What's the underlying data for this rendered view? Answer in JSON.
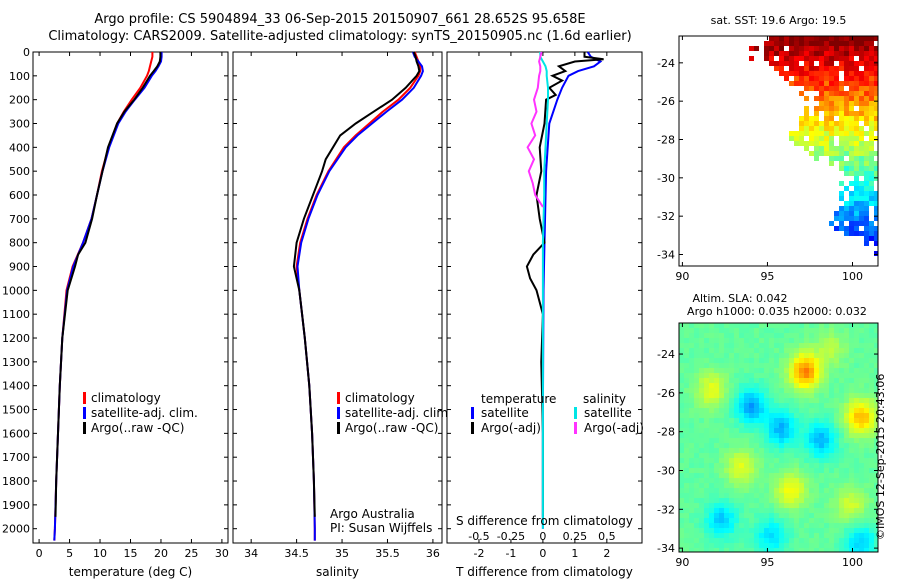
{
  "header": {
    "line1": "Argo profile: CS 5904894_33 06-Sep-2015 20150907_661 28.652S 95.658E",
    "line2": "Climatology: CARS2009. Satellite-adjusted climatology: synTS_20150905.nc (1.6d earlier)"
  },
  "credit": "©IMOS 12-Sep-2015 20:43:06",
  "colors": {
    "climatology": "#ff0000",
    "satellite": "#0000ff",
    "argo": "#000000",
    "satellite_s": "#00e5e5",
    "argo_s": "#ff33ff"
  },
  "chart_data": [
    {
      "id": "temperature-profile",
      "type": "line",
      "xlabel": "temperature (deg C)",
      "xlim": [
        -1,
        31
      ],
      "ylim": [
        0,
        2060
      ],
      "y_reversed": true,
      "xticks": [
        0,
        5,
        10,
        15,
        20,
        25,
        30
      ],
      "yticks": [
        0,
        100,
        200,
        300,
        400,
        500,
        600,
        700,
        800,
        900,
        1000,
        1100,
        1200,
        1300,
        1400,
        1500,
        1600,
        1700,
        1800,
        1900,
        2000
      ],
      "legend": [
        "climatology",
        "satellite-adj. clim.",
        "Argo(..raw -QC)"
      ],
      "series": [
        {
          "name": "climatology",
          "color": "#ff0000",
          "depth": [
            0,
            20,
            40,
            60,
            80,
            100,
            150,
            200,
            250,
            300,
            400,
            500,
            600,
            700,
            800,
            900,
            1000,
            1200,
            1400,
            1600,
            1800,
            2000,
            2050
          ],
          "values": [
            18.6,
            18.6,
            18.4,
            18.2,
            18.0,
            17.7,
            16.6,
            15.2,
            13.9,
            12.8,
            11.4,
            10.3,
            9.5,
            8.6,
            7.2,
            5.5,
            4.5,
            3.8,
            3.4,
            3.1,
            2.8,
            2.6,
            2.5
          ]
        },
        {
          "name": "satellite-adj. clim.",
          "color": "#0000ff",
          "depth": [
            0,
            20,
            40,
            60,
            80,
            100,
            150,
            200,
            250,
            300,
            400,
            500,
            600,
            700,
            800,
            900,
            1000,
            1200,
            1400,
            1600,
            1800,
            2000,
            2050
          ],
          "values": [
            20.1,
            20.1,
            20.0,
            19.6,
            19.1,
            18.5,
            17.3,
            15.7,
            14.2,
            13.0,
            11.5,
            10.4,
            9.5,
            8.6,
            7.2,
            5.6,
            4.6,
            3.8,
            3.4,
            3.1,
            2.8,
            2.6,
            2.5
          ]
        },
        {
          "name": "Argo(..raw -QC)",
          "color": "#000000",
          "depth": [
            0,
            20,
            40,
            60,
            80,
            100,
            150,
            200,
            250,
            300,
            400,
            500,
            600,
            700,
            800,
            850,
            900,
            1000,
            1200,
            1400,
            1600,
            1800,
            1950
          ],
          "values": [
            19.9,
            19.9,
            19.8,
            19.4,
            18.8,
            18.2,
            17.0,
            15.6,
            14.0,
            12.8,
            11.3,
            10.4,
            9.5,
            8.7,
            7.6,
            6.4,
            5.9,
            4.7,
            3.8,
            3.4,
            3.1,
            2.8,
            2.7
          ]
        }
      ]
    },
    {
      "id": "salinity-profile",
      "type": "line",
      "xlabel": "salinity",
      "xlim": [
        33.8,
        36.1
      ],
      "ylim": [
        0,
        2060
      ],
      "y_reversed": true,
      "xticks": [
        34,
        34.5,
        35,
        35.5,
        36
      ],
      "xticklabels": [
        "34",
        "34.5",
        "35",
        "35.5",
        "36"
      ],
      "legend": [
        "climatology",
        "satellite-adj. clim.",
        "Argo(..raw -QC)"
      ],
      "annotation": [
        "Argo Australia",
        "PI: Susan Wijffels"
      ],
      "series": [
        {
          "name": "climatology",
          "color": "#ff0000",
          "depth": [
            0,
            20,
            40,
            60,
            80,
            100,
            150,
            200,
            250,
            300,
            350,
            400,
            500,
            600,
            700,
            800,
            900,
            1000,
            1200,
            1400,
            1600,
            1800,
            2000,
            2050
          ],
          "values": [
            35.8,
            35.82,
            35.84,
            35.86,
            35.86,
            35.84,
            35.75,
            35.62,
            35.45,
            35.3,
            35.15,
            35.02,
            34.85,
            34.72,
            34.62,
            34.54,
            34.5,
            34.53,
            34.59,
            34.64,
            34.67,
            34.69,
            34.7,
            34.7
          ]
        },
        {
          "name": "satellite-adj. clim.",
          "color": "#0000ff",
          "depth": [
            0,
            20,
            40,
            60,
            80,
            100,
            150,
            200,
            250,
            300,
            350,
            400,
            500,
            600,
            700,
            800,
            900,
            1000,
            1200,
            1400,
            1600,
            1800,
            2000,
            2050
          ],
          "values": [
            35.78,
            35.8,
            35.84,
            35.88,
            35.89,
            35.87,
            35.79,
            35.66,
            35.49,
            35.33,
            35.17,
            35.04,
            34.86,
            34.73,
            34.63,
            34.55,
            34.51,
            34.53,
            34.59,
            34.64,
            34.67,
            34.69,
            34.7,
            34.7
          ]
        },
        {
          "name": "Argo(..raw -QC)",
          "color": "#000000",
          "depth": [
            0,
            20,
            40,
            60,
            80,
            100,
            150,
            200,
            250,
            300,
            350,
            400,
            450,
            500,
            600,
            700,
            800,
            900,
            950,
            1000,
            1100,
            1200,
            1400,
            1600,
            1800,
            1950
          ],
          "values": [
            35.79,
            35.81,
            35.82,
            35.84,
            35.85,
            35.82,
            35.7,
            35.55,
            35.35,
            35.15,
            34.98,
            34.9,
            34.82,
            34.78,
            34.68,
            34.58,
            34.5,
            34.47,
            34.5,
            34.53,
            34.56,
            34.59,
            34.64,
            34.67,
            34.69,
            34.7
          ]
        }
      ]
    },
    {
      "id": "difference-profile",
      "type": "line",
      "xlabel": "T difference from climatology",
      "top_axis_label": "S difference from climatology",
      "xlim": [
        -3,
        3.1
      ],
      "ylim": [
        0,
        2060
      ],
      "y_reversed": true,
      "xticks": [
        -2,
        -1,
        0,
        1,
        2
      ],
      "top_ticks": [
        -0.5,
        -0.25,
        0,
        0.25,
        0.5
      ],
      "top_ticklabels": [
        "-0.5",
        "-0.25",
        "0",
        "0.25",
        "0.5"
      ],
      "legend_titles": [
        "temperature",
        "salinity"
      ],
      "legend": [
        "satellite",
        "Argo(-adj)",
        "satellite",
        "Argo(-adj)"
      ],
      "series": [
        {
          "name": "satellite",
          "group": "temperature",
          "color": "#0000ff",
          "depth": [
            0,
            20,
            40,
            60,
            80,
            100,
            150,
            200,
            300,
            500,
            800,
            1000,
            1500,
            2000
          ],
          "values": [
            1.4,
            1.5,
            1.8,
            1.6,
            1.1,
            0.8,
            0.6,
            0.45,
            0.2,
            0.1,
            0.05,
            0.02,
            0.0,
            0.0
          ]
        },
        {
          "name": "Argo(-adj)",
          "group": "temperature",
          "color": "#000000",
          "depth": [
            0,
            20,
            30,
            40,
            60,
            80,
            100,
            120,
            150,
            180,
            200,
            300,
            400,
            500,
            600,
            700,
            800,
            850,
            900,
            950,
            1000,
            1100,
            1300,
            1600,
            1950
          ],
          "values": [
            1.3,
            1.3,
            1.9,
            1.0,
            0.5,
            0.7,
            0.3,
            0.6,
            0.2,
            0.4,
            0.1,
            0.05,
            -0.1,
            -0.05,
            -0.2,
            -0.1,
            0.05,
            -0.3,
            -0.5,
            -0.4,
            -0.2,
            0.0,
            -0.05,
            0.0,
            0.0
          ]
        },
        {
          "name": "satellite",
          "group": "salinity",
          "color": "#00e5e5",
          "depth": [
            0,
            20,
            40,
            60,
            80,
            100,
            150,
            200,
            300,
            400,
            500,
            600,
            800,
            1000,
            1500,
            2000
          ],
          "values": [
            -0.02,
            -0.02,
            0.0,
            0.02,
            0.03,
            0.03,
            0.04,
            0.04,
            0.03,
            0.02,
            0.01,
            0.01,
            0.0,
            0.0,
            0.0,
            0.0
          ]
        },
        {
          "name": "Argo(-adj)",
          "group": "salinity",
          "color": "#ff33ff",
          "depth": [
            0,
            20,
            40,
            60,
            80,
            100,
            150,
            200,
            250,
            300,
            350,
            400,
            450,
            500,
            550,
            600,
            650
          ],
          "values": [
            -0.01,
            -0.02,
            -0.03,
            -0.02,
            -0.02,
            -0.03,
            -0.04,
            -0.07,
            -0.05,
            -0.09,
            -0.06,
            -0.12,
            -0.07,
            -0.11,
            -0.08,
            -0.06,
            0.0
          ]
        }
      ]
    },
    {
      "id": "sst-map",
      "type": "heatmap",
      "title": "sat. SST: 19.6 Argo: 19.5",
      "xlim": [
        89.8,
        101.5
      ],
      "ylim": [
        -34.6,
        -22.6
      ],
      "xticks": [
        90,
        95,
        100
      ],
      "yticks": [
        -24,
        -26,
        -28,
        -30,
        -32,
        -34
      ],
      "profile_lon": 95.658,
      "profile_lat": -28.652
    },
    {
      "id": "sla-map",
      "type": "heatmap",
      "title": "Altim. SLA: 0.042",
      "subtitle": "Argo h1000: 0.035 h2000: 0.032",
      "xlim": [
        89.8,
        101.5
      ],
      "ylim": [
        -34.2,
        -22.4
      ],
      "xticks": [
        90,
        95,
        100
      ],
      "yticks": [
        -24,
        -26,
        -28,
        -30,
        -32,
        -34
      ]
    }
  ]
}
